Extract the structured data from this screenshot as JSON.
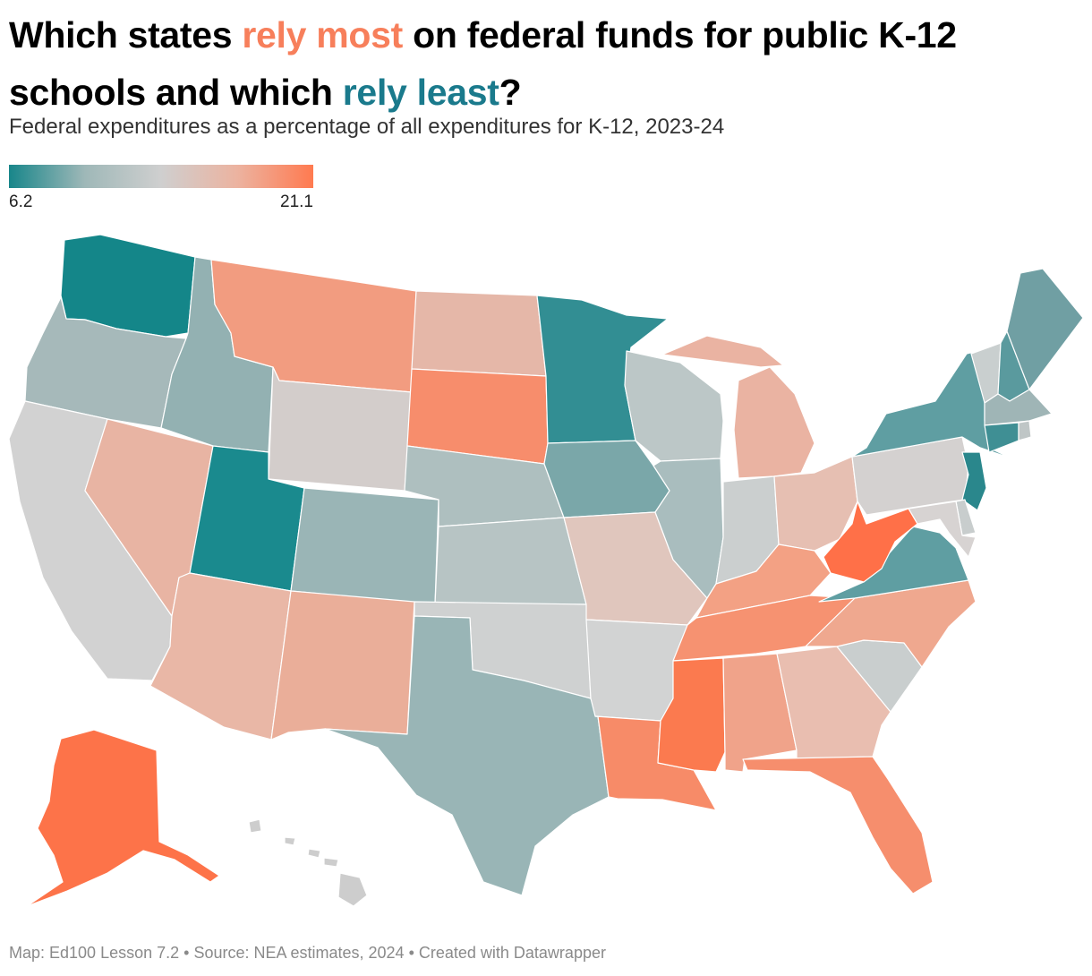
{
  "title": {
    "part1": "Which states ",
    "highlight_most": "rely most",
    "part2": " on federal funds for public K-12 schools and which ",
    "highlight_least": "rely least",
    "part3": "?",
    "color_most": "#f77f5b",
    "color_least": "#1a7a8c"
  },
  "subtitle": "Federal expenditures as a percentage of all expenditures for K-12, 2023-24",
  "legend": {
    "min_label": "6.2",
    "max_label": "21.1",
    "min": 6.2,
    "max": 21.1,
    "gradient": [
      "#18868a",
      "#9fb8b8",
      "#cfcfcf",
      "#ecb3a0",
      "#ff7a50"
    ]
  },
  "footer": "Map: Ed100 Lesson 7.2 • Source: NEA estimates, 2024 • Created with Datawrapper",
  "map_data": {
    "type": "choropleth",
    "states": [
      {
        "id": "WA",
        "color": "#148689"
      },
      {
        "id": "OR",
        "color": "#a6b9ba"
      },
      {
        "id": "CA",
        "color": "#d2d2d2"
      },
      {
        "id": "NV",
        "color": "#e8b4a3"
      },
      {
        "id": "ID",
        "color": "#93b1b2"
      },
      {
        "id": "MT",
        "color": "#f29c80"
      },
      {
        "id": "WY",
        "color": "#d3cdcb"
      },
      {
        "id": "UT",
        "color": "#1a8a8e"
      },
      {
        "id": "AZ",
        "color": "#e9b7a6"
      },
      {
        "id": "CO",
        "color": "#9ab5b6"
      },
      {
        "id": "NM",
        "color": "#eaae99"
      },
      {
        "id": "ND",
        "color": "#e5b7a8"
      },
      {
        "id": "SD",
        "color": "#f78d6c"
      },
      {
        "id": "NE",
        "color": "#aebfbf"
      },
      {
        "id": "KS",
        "color": "#b7c4c4"
      },
      {
        "id": "OK",
        "color": "#cfd1d1"
      },
      {
        "id": "TX",
        "color": "#99b5b6"
      },
      {
        "id": "MN",
        "color": "#328e93"
      },
      {
        "id": "IA",
        "color": "#7aa7a9"
      },
      {
        "id": "MO",
        "color": "#e0c6bd"
      },
      {
        "id": "AR",
        "color": "#d2d3d3"
      },
      {
        "id": "LA",
        "color": "#f78b68"
      },
      {
        "id": "WI",
        "color": "#bcc7c7"
      },
      {
        "id": "IL",
        "color": "#a9bdbe"
      },
      {
        "id": "MI",
        "color": "#eab3a2"
      },
      {
        "id": "IN",
        "color": "#cbcfcf"
      },
      {
        "id": "OH",
        "color": "#e6bfb2"
      },
      {
        "id": "KY",
        "color": "#f3a184"
      },
      {
        "id": "TN",
        "color": "#f69271"
      },
      {
        "id": "MS",
        "color": "#fb7a4f"
      },
      {
        "id": "AL",
        "color": "#f0a38a"
      },
      {
        "id": "GA",
        "color": "#e9beb0"
      },
      {
        "id": "FL",
        "color": "#f68e6d"
      },
      {
        "id": "SC",
        "color": "#c9cece"
      },
      {
        "id": "NC",
        "color": "#efa88f"
      },
      {
        "id": "VA",
        "color": "#5f9ea2"
      },
      {
        "id": "WV",
        "color": "#ff7048"
      },
      {
        "id": "PA",
        "color": "#d4d1d0"
      },
      {
        "id": "NY",
        "color": "#5f9ea2"
      },
      {
        "id": "ME",
        "color": "#709fa3"
      },
      {
        "id": "VT",
        "color": "#c9cfcf"
      },
      {
        "id": "NH",
        "color": "#5a9a9e"
      },
      {
        "id": "MA",
        "color": "#9fb5b6"
      },
      {
        "id": "CT",
        "color": "#3f8f94"
      },
      {
        "id": "RI",
        "color": "#bfc6c6"
      },
      {
        "id": "NJ",
        "color": "#2a878c"
      },
      {
        "id": "DE",
        "color": "#c8cdcd"
      },
      {
        "id": "MD",
        "color": "#d7d3d2"
      },
      {
        "id": "AK",
        "color": "#fd7349"
      },
      {
        "id": "HI",
        "color": "#cdcdcd"
      }
    ]
  }
}
